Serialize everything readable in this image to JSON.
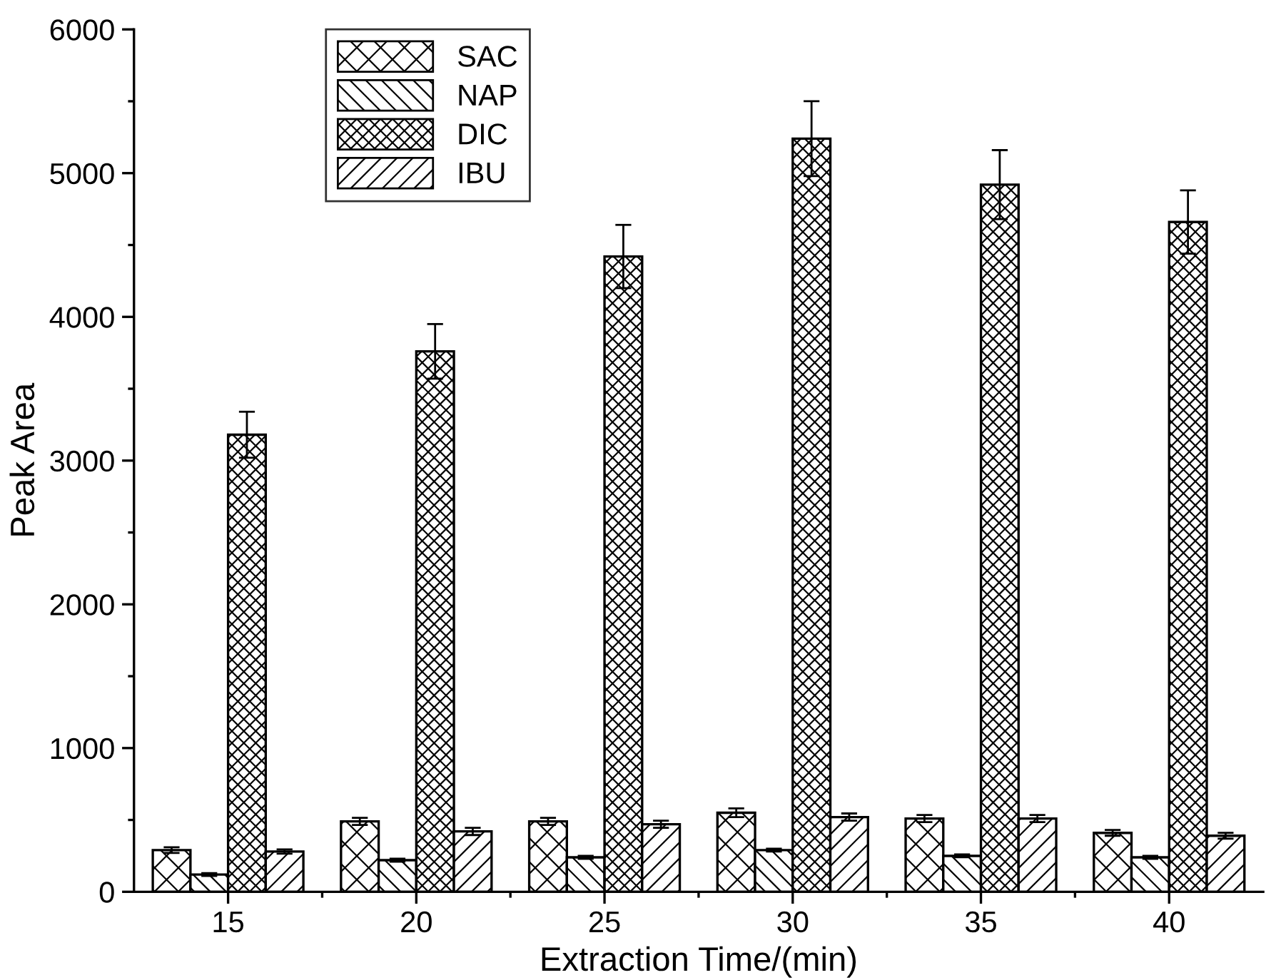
{
  "chart_data": {
    "type": "bar",
    "xlabel": "Extraction Time/(min)",
    "ylabel": "Peak Area",
    "categories": [
      "15",
      "20",
      "25",
      "30",
      "35",
      "40"
    ],
    "series": [
      {
        "name": "SAC",
        "color": "#000000",
        "values": [
          290,
          490,
          490,
          550,
          510,
          410
        ],
        "errors": [
          20,
          25,
          25,
          30,
          25,
          20
        ]
      },
      {
        "name": "NAP",
        "color": "#000000",
        "values": [
          120,
          220,
          240,
          290,
          250,
          240
        ],
        "errors": [
          10,
          10,
          10,
          10,
          10,
          10
        ]
      },
      {
        "name": "DIC",
        "color": "#000000",
        "values": [
          3180,
          3760,
          4420,
          5240,
          4920,
          4660
        ],
        "errors": [
          160,
          190,
          220,
          260,
          240,
          220
        ]
      },
      {
        "name": "IBU",
        "color": "#000000",
        "values": [
          280,
          420,
          470,
          520,
          510,
          390
        ],
        "errors": [
          15,
          25,
          25,
          25,
          25,
          20
        ]
      }
    ],
    "ylim": [
      0,
      6000
    ],
    "yticks": [
      0,
      1000,
      2000,
      3000,
      4000,
      5000,
      6000
    ],
    "legend": "top left"
  }
}
